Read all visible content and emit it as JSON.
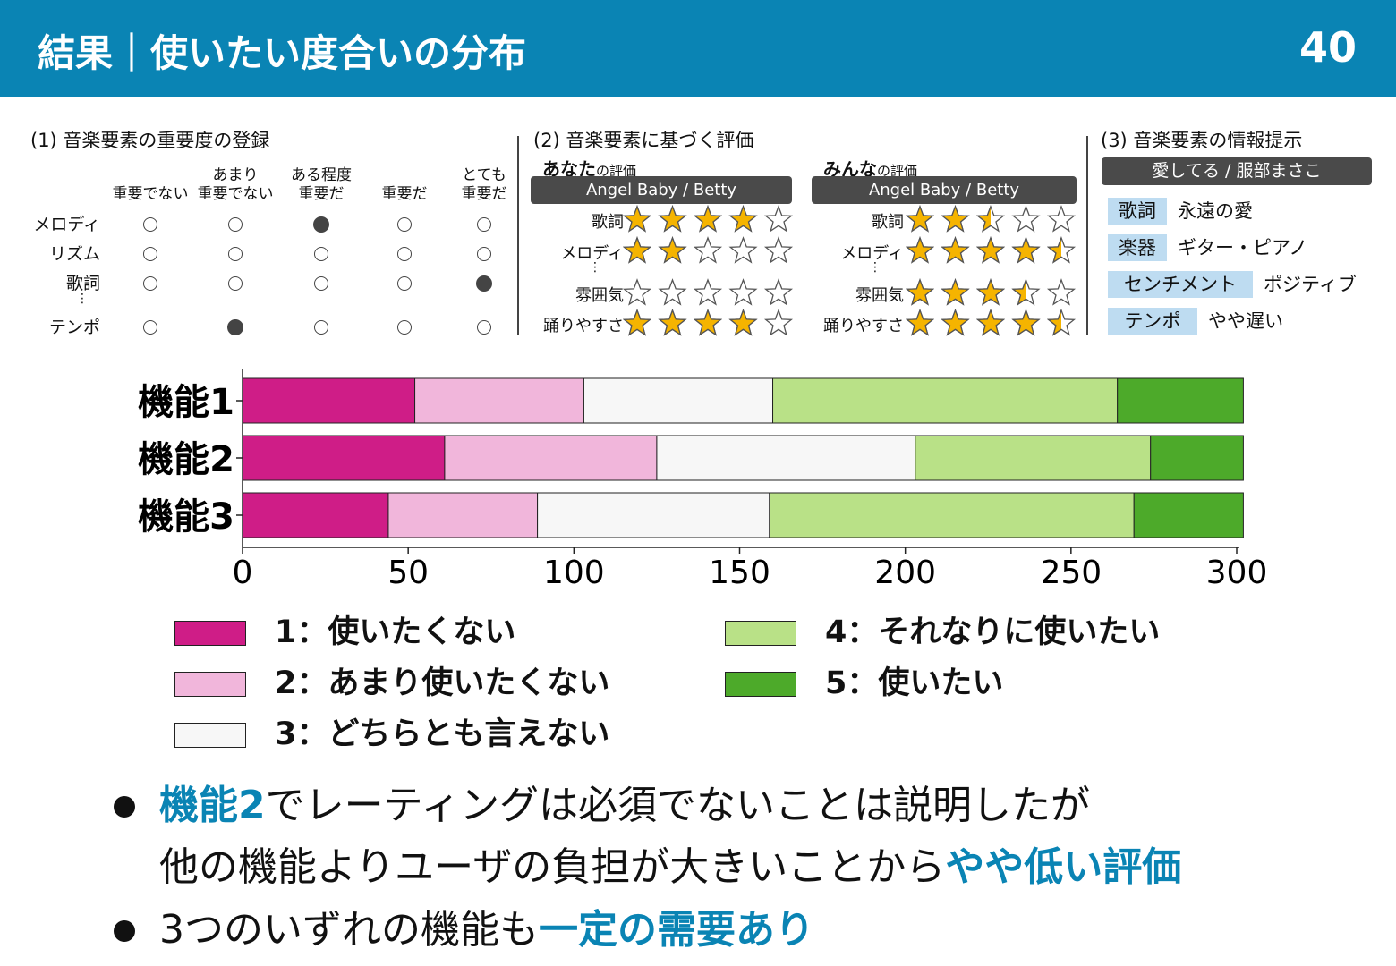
{
  "header": {
    "title": "結果｜使いたい度合いの分布",
    "page_number": "40"
  },
  "panel1": {
    "title": "(1) 音楽要素の重要度の登録",
    "columns": [
      [
        "",
        "重要でない"
      ],
      [
        "あまり",
        "重要でない"
      ],
      [
        "ある程度",
        "重要だ"
      ],
      [
        "",
        "重要だ"
      ],
      [
        "とても",
        "重要だ"
      ]
    ],
    "rows": [
      {
        "label": "メロディ",
        "selected": 2
      },
      {
        "label": "リズム",
        "selected": -1
      },
      {
        "label": "歌詞",
        "selected": 4
      },
      {
        "label": "テンポ",
        "selected": 1
      }
    ],
    "ellipsis": "⋮"
  },
  "panel2": {
    "title": "(2) 音楽要素に基づく評価",
    "yours": {
      "title": "あなた",
      "suffix": "の評価",
      "song": "Angel Baby / Betty"
    },
    "everyone": {
      "title": "みんな",
      "suffix": "の評価",
      "song": "Angel Baby / Betty"
    },
    "ellipsis": "⋮",
    "items": [
      {
        "label": "歌詞",
        "yours": 4,
        "everyone": 2.5
      },
      {
        "label": "メロディ",
        "yours": 2,
        "everyone": 4.5
      },
      {
        "label": "雰囲気",
        "yours": 0,
        "everyone": 3.5
      },
      {
        "label": "踊りやすさ",
        "yours": 4,
        "everyone": 4.5
      }
    ],
    "star_colors": {
      "fill": "#f5b400",
      "stroke": "#555555"
    }
  },
  "panel3": {
    "title": "(3) 音楽要素の情報提示",
    "song": "愛してる / 服部まさこ",
    "info": [
      {
        "tag": "歌詞",
        "value": "永遠の愛"
      },
      {
        "tag": "楽器",
        "value": "ギター・ピアノ"
      },
      {
        "tag": "センチメント",
        "value": "ポジティブ"
      },
      {
        "tag": "テンポ",
        "value": "やや遅い"
      }
    ]
  },
  "chart_data": {
    "type": "bar",
    "orientation": "horizontal",
    "stacked": true,
    "categories": [
      "機能1",
      "機能2",
      "機能3"
    ],
    "series": [
      {
        "name": "1：使いたくない",
        "values": [
          52,
          61,
          44
        ],
        "color": "#cf1d87"
      },
      {
        "name": "2：あまり使いたくない",
        "values": [
          51,
          64,
          45
        ],
        "color": "#f1b6db"
      },
      {
        "name": "3：どちらとも言えない",
        "values": [
          57,
          78,
          70
        ],
        "color": "#f7f7f7"
      },
      {
        "name": "4：それなりに使いたい",
        "values": [
          104,
          71,
          110
        ],
        "color": "#b9e187"
      },
      {
        "name": "5：使いたい",
        "values": [
          38,
          28,
          33
        ],
        "color": "#4daa2a"
      }
    ],
    "xlim": [
      0,
      300
    ],
    "xticks": [
      0,
      50,
      100,
      150,
      200,
      250,
      300
    ],
    "legend_position": "bottom",
    "grid": false
  },
  "bullets": [
    {
      "lines": [
        [
          {
            "text": "機能2",
            "hl": true
          },
          {
            "text": "でレーティングは必須でないことは説明したが",
            "hl": false
          }
        ],
        [
          {
            "text": "他の機能よりユーザの負担が大きいことから",
            "hl": false
          },
          {
            "text": "やや低い評価",
            "hl": true
          }
        ]
      ]
    },
    {
      "lines": [
        [
          {
            "text": "3つのいずれの機能も",
            "hl": false
          },
          {
            "text": "一定の需要あり",
            "hl": true
          }
        ]
      ]
    }
  ]
}
